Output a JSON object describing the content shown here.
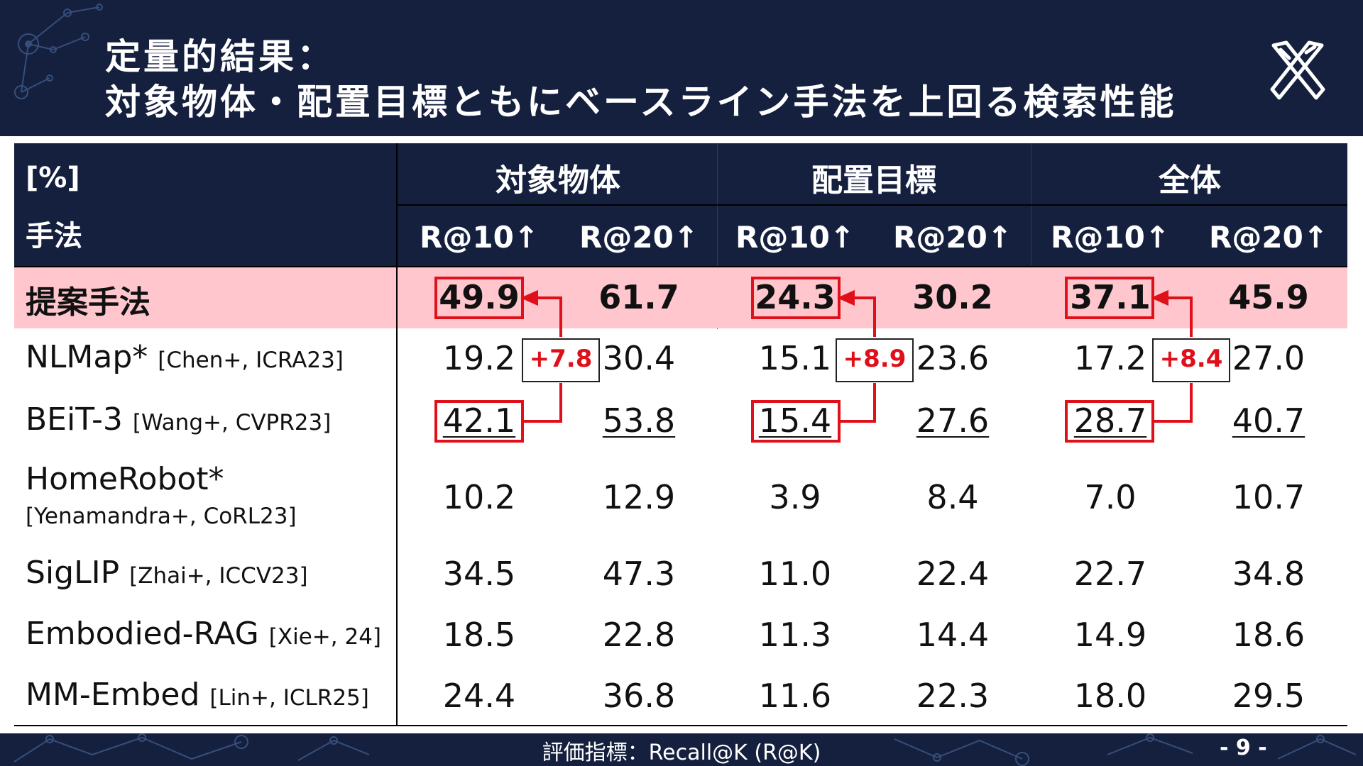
{
  "header": {
    "title_line1": "定量的結果：",
    "title_line2": "対象物体・配置目標ともにベースライン手法を上回る検索性能",
    "logo_icon": "crossed-tools-logo-icon"
  },
  "table": {
    "unit_label": "[%]",
    "method_header": "手法",
    "groups": [
      "対象物体",
      "配置目標",
      "全体"
    ],
    "subheaders": [
      "R@10↑",
      "R@20↑",
      "R@10↑",
      "R@20↑",
      "R@10↑",
      "R@20↑"
    ],
    "rows": [
      {
        "name": "提案手法",
        "cite": "",
        "values": [
          "49.9",
          "61.7",
          "24.3",
          "30.2",
          "37.1",
          "45.9"
        ]
      },
      {
        "name": "NLMap*",
        "cite": "[Chen+, ICRA23]",
        "values": [
          "19.2",
          "30.4",
          "15.1",
          "23.6",
          "17.2",
          "27.0"
        ]
      },
      {
        "name": "BEiT-3",
        "cite": "[Wang+, CVPR23]",
        "values": [
          "42.1",
          "53.8",
          "15.4",
          "27.6",
          "28.7",
          "40.7"
        ]
      },
      {
        "name": "HomeRobot*",
        "cite": "[Yenamandra+, CoRL23]",
        "values": [
          "10.2",
          "12.9",
          "3.9",
          "8.4",
          "7.0",
          "10.7"
        ]
      },
      {
        "name": "SigLIP",
        "cite": "[Zhai+, ICCV23]",
        "values": [
          "34.5",
          "47.3",
          "11.0",
          "22.4",
          "22.7",
          "34.8"
        ]
      },
      {
        "name": "Embodied-RAG",
        "cite": "[Xie+, 24]",
        "values": [
          "18.5",
          "22.8",
          "11.3",
          "14.4",
          "14.9",
          "18.6"
        ]
      },
      {
        "name": "MM-Embed",
        "cite": "[Lin+, ICLR25]",
        "values": [
          "24.4",
          "36.8",
          "11.6",
          "22.3",
          "18.0",
          "29.5"
        ]
      }
    ],
    "improvements": [
      "+7.8",
      "+8.9",
      "+8.4"
    ]
  },
  "colors": {
    "navy": "#15203f",
    "highlight_row": "#ffc7cd",
    "accent_red": "#e0101a"
  },
  "footer": {
    "metric": "評価指標：Recall@K (R@K)",
    "page_number": "- 9 -"
  }
}
